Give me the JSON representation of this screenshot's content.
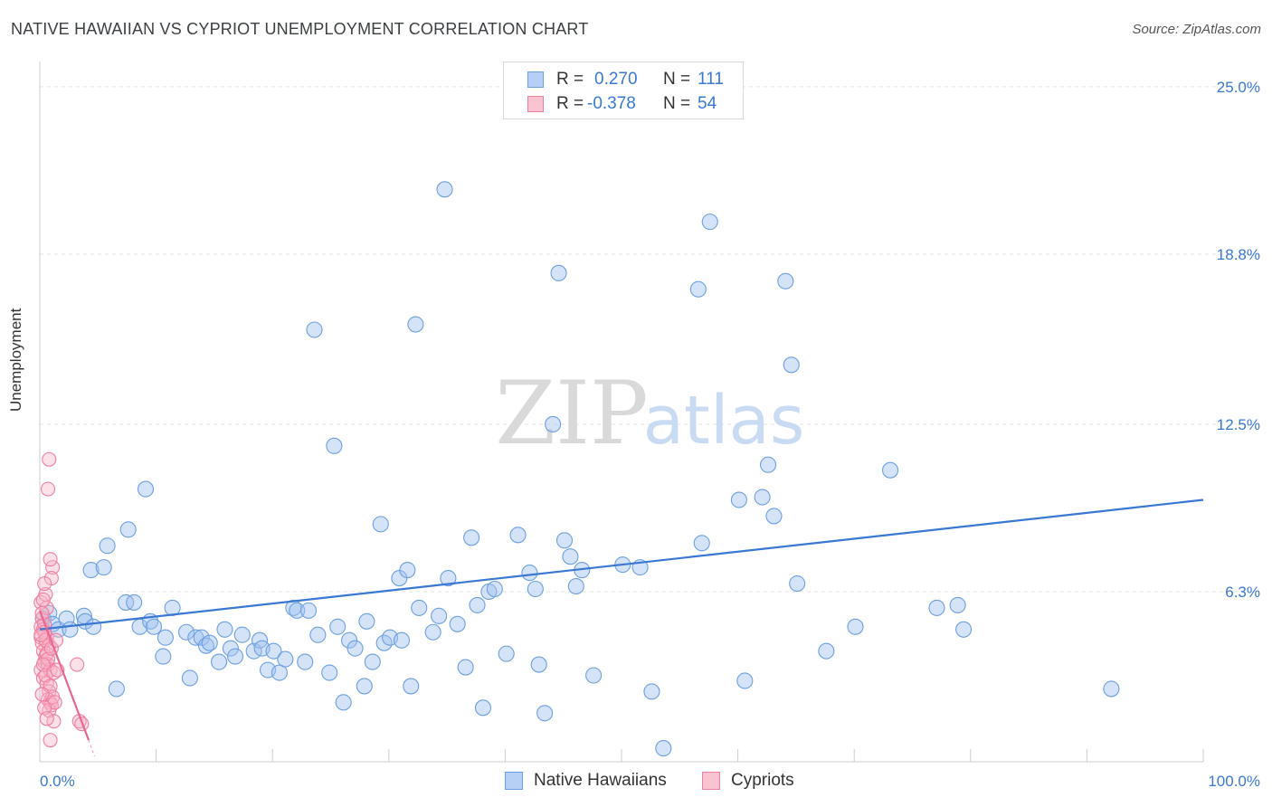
{
  "title": "NATIVE HAWAIIAN VS CYPRIOT UNEMPLOYMENT CORRELATION CHART",
  "source": "Source: ZipAtlas.com",
  "watermark": {
    "zip": "ZIP",
    "atlas": "atlas"
  },
  "legend": {
    "r_label": "R =",
    "n_label": "N =",
    "rows": [
      {
        "name": "Native Hawaiians",
        "r": "0.270",
        "n": "111",
        "fill": "#b6d0f5",
        "stroke": "#6d9fe0"
      },
      {
        "name": "Cypriots",
        "r": "-0.378",
        "n": "54",
        "fill": "#f9c3d2",
        "stroke": "#ee7fa0"
      }
    ]
  },
  "chart_data": {
    "type": "scatter",
    "title": "NATIVE HAWAIIAN VS CYPRIOT UNEMPLOYMENT CORRELATION CHART",
    "xlabel": "",
    "ylabel": "Unemployment",
    "xlim": [
      0,
      100
    ],
    "ylim": [
      0,
      25.6
    ],
    "x_tick_labels": {
      "min": "0.0%",
      "max": "100.0%"
    },
    "y_ticks": [
      {
        "value": 6.3,
        "label": "6.3%"
      },
      {
        "value": 12.5,
        "label": "12.5%"
      },
      {
        "value": 18.8,
        "label": "18.8%"
      },
      {
        "value": 25.0,
        "label": "25.0%"
      }
    ],
    "colors": {
      "blue": "#3a78d4",
      "pink": "#e8668f",
      "grid": "#e3e3e3"
    },
    "series": [
      {
        "name": "Native Hawaiians",
        "r": 0.27,
        "n": 111,
        "trend": {
          "x": [
            0,
            100
          ],
          "y": [
            4.9,
            9.7
          ]
        },
        "points": [
          [
            0.3,
            5.3
          ],
          [
            0.8,
            5.5
          ],
          [
            1.1,
            5.1
          ],
          [
            1.6,
            4.9
          ],
          [
            2.3,
            5.3
          ],
          [
            2.6,
            4.9
          ],
          [
            3.8,
            5.4
          ],
          [
            3.9,
            5.2
          ],
          [
            4.6,
            5.0
          ],
          [
            4.4,
            7.1
          ],
          [
            5.5,
            7.2
          ],
          [
            5.8,
            8.0
          ],
          [
            6.6,
            2.7
          ],
          [
            7.4,
            5.9
          ],
          [
            7.6,
            8.6
          ],
          [
            8.1,
            5.9
          ],
          [
            8.6,
            5.0
          ],
          [
            9.1,
            10.1
          ],
          [
            9.5,
            5.2
          ],
          [
            9.8,
            5.0
          ],
          [
            10.6,
            3.9
          ],
          [
            10.8,
            4.6
          ],
          [
            11.4,
            5.7
          ],
          [
            12.6,
            4.8
          ],
          [
            12.9,
            3.1
          ],
          [
            13.4,
            4.6
          ],
          [
            13.9,
            4.6
          ],
          [
            14.3,
            4.3
          ],
          [
            14.6,
            4.4
          ],
          [
            15.4,
            3.7
          ],
          [
            15.9,
            4.9
          ],
          [
            16.4,
            4.2
          ],
          [
            16.8,
            3.9
          ],
          [
            17.4,
            4.7
          ],
          [
            18.4,
            4.1
          ],
          [
            18.9,
            4.5
          ],
          [
            19.1,
            4.2
          ],
          [
            19.6,
            3.4
          ],
          [
            20.1,
            4.1
          ],
          [
            20.6,
            3.3
          ],
          [
            21.1,
            3.8
          ],
          [
            21.8,
            5.7
          ],
          [
            22.1,
            5.6
          ],
          [
            22.8,
            3.7
          ],
          [
            23.1,
            5.6
          ],
          [
            23.6,
            16.0
          ],
          [
            23.9,
            4.7
          ],
          [
            24.9,
            3.3
          ],
          [
            25.3,
            11.7
          ],
          [
            25.6,
            5.0
          ],
          [
            26.1,
            2.2
          ],
          [
            26.6,
            4.5
          ],
          [
            27.1,
            4.2
          ],
          [
            27.9,
            2.8
          ],
          [
            28.1,
            5.2
          ],
          [
            28.6,
            3.7
          ],
          [
            29.3,
            8.8
          ],
          [
            29.6,
            4.4
          ],
          [
            30.1,
            4.6
          ],
          [
            30.9,
            6.8
          ],
          [
            31.6,
            7.1
          ],
          [
            31.9,
            2.8
          ],
          [
            32.3,
            16.2
          ],
          [
            32.6,
            5.7
          ],
          [
            33.8,
            4.8
          ],
          [
            34.3,
            5.4
          ],
          [
            34.8,
            21.2
          ],
          [
            35.1,
            6.8
          ],
          [
            35.9,
            5.1
          ],
          [
            36.6,
            3.5
          ],
          [
            37.1,
            8.3
          ],
          [
            37.6,
            5.8
          ],
          [
            38.1,
            2.0
          ],
          [
            38.6,
            6.3
          ],
          [
            39.1,
            6.4
          ],
          [
            40.1,
            4.0
          ],
          [
            41.1,
            8.4
          ],
          [
            42.1,
            7.0
          ],
          [
            42.6,
            6.4
          ],
          [
            42.9,
            3.6
          ],
          [
            43.4,
            1.8
          ],
          [
            44.1,
            12.5
          ],
          [
            44.6,
            18.1
          ],
          [
            45.1,
            8.2
          ],
          [
            45.6,
            7.6
          ],
          [
            46.1,
            6.5
          ],
          [
            46.6,
            7.1
          ],
          [
            47.6,
            3.2
          ],
          [
            50.1,
            7.3
          ],
          [
            51.6,
            7.2
          ],
          [
            52.6,
            2.6
          ],
          [
            53.6,
            0.5
          ],
          [
            56.6,
            17.5
          ],
          [
            56.9,
            8.1
          ],
          [
            57.6,
            20.0
          ],
          [
            60.6,
            3.0
          ],
          [
            64.1,
            17.8
          ],
          [
            64.6,
            14.7
          ],
          [
            65.1,
            6.6
          ],
          [
            60.1,
            9.7
          ],
          [
            62.1,
            9.8
          ],
          [
            62.6,
            11.0
          ],
          [
            63.1,
            9.1
          ],
          [
            67.6,
            4.1
          ],
          [
            70.1,
            5.0
          ],
          [
            73.1,
            10.8
          ],
          [
            77.1,
            5.7
          ],
          [
            78.9,
            5.8
          ],
          [
            79.4,
            4.9
          ],
          [
            92.1,
            2.7
          ],
          [
            31.1,
            4.5
          ]
        ]
      },
      {
        "name": "Cypriots",
        "r": -0.378,
        "n": 54,
        "trend": {
          "x": [
            0,
            4.2
          ],
          "y": [
            5.6,
            0.8
          ]
        },
        "trend_ext": {
          "x": [
            4.2,
            4.7
          ],
          "y": [
            0.8,
            0.2
          ]
        },
        "points": [
          [
            0.1,
            5.9
          ],
          [
            0.2,
            5.3
          ],
          [
            0.1,
            5.0
          ],
          [
            0.3,
            4.9
          ],
          [
            0.1,
            4.6
          ],
          [
            0.2,
            4.4
          ],
          [
            0.3,
            4.1
          ],
          [
            0.4,
            3.7
          ],
          [
            0.1,
            3.4
          ],
          [
            0.3,
            3.1
          ],
          [
            0.5,
            6.2
          ],
          [
            0.6,
            5.7
          ],
          [
            0.4,
            5.1
          ],
          [
            0.6,
            4.6
          ],
          [
            0.8,
            4.3
          ],
          [
            0.5,
            3.9
          ],
          [
            0.7,
            3.6
          ],
          [
            0.9,
            3.4
          ],
          [
            0.6,
            2.9
          ],
          [
            0.8,
            2.6
          ],
          [
            0.7,
            2.3
          ],
          [
            0.9,
            2.2
          ],
          [
            1.0,
            2.1
          ],
          [
            0.8,
            1.9
          ],
          [
            1.2,
            1.5
          ],
          [
            0.9,
            0.8
          ],
          [
            1.1,
            7.2
          ],
          [
            0.9,
            7.5
          ],
          [
            1.0,
            6.8
          ],
          [
            0.7,
            10.1
          ],
          [
            0.8,
            11.2
          ],
          [
            0.4,
            6.6
          ],
          [
            0.3,
            6.0
          ],
          [
            0.2,
            5.5
          ],
          [
            0.4,
            4.8
          ],
          [
            0.5,
            4.5
          ],
          [
            0.6,
            4.0
          ],
          [
            0.7,
            3.8
          ],
          [
            0.3,
            3.6
          ],
          [
            0.5,
            3.2
          ],
          [
            0.9,
            2.8
          ],
          [
            1.1,
            2.4
          ],
          [
            1.3,
            2.2
          ],
          [
            1.2,
            3.3
          ],
          [
            1.5,
            3.4
          ],
          [
            1.0,
            4.2
          ],
          [
            1.4,
            4.5
          ],
          [
            3.2,
            3.6
          ],
          [
            3.4,
            1.5
          ],
          [
            3.6,
            1.4
          ],
          [
            0.4,
            2.0
          ],
          [
            0.6,
            1.6
          ],
          [
            0.2,
            2.5
          ],
          [
            0.1,
            4.7
          ]
        ]
      }
    ]
  }
}
